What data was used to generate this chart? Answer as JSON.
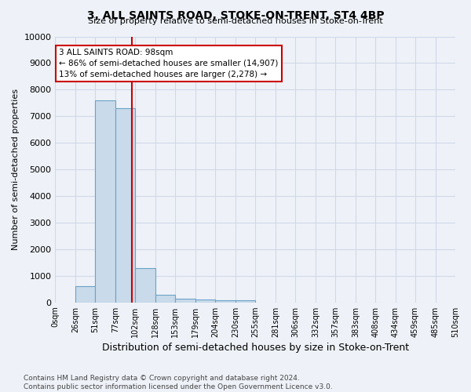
{
  "title": "3, ALL SAINTS ROAD, STOKE-ON-TRENT, ST4 4BP",
  "subtitle": "Size of property relative to semi-detached houses in Stoke-on-Trent",
  "xlabel": "Distribution of semi-detached houses by size in Stoke-on-Trent",
  "ylabel": "Number of semi-detached properties",
  "bin_edges": [
    0,
    26,
    51,
    77,
    102,
    128,
    153,
    179,
    204,
    230,
    255,
    281,
    306,
    332,
    357,
    383,
    408,
    434,
    459,
    485,
    510
  ],
  "bar_heights": [
    0,
    600,
    7600,
    7300,
    1300,
    300,
    150,
    100,
    75,
    75,
    0,
    0,
    0,
    0,
    0,
    0,
    0,
    0,
    0,
    0
  ],
  "bar_color": "#c9daea",
  "bar_edge_color": "#6aa3c8",
  "property_size": 98,
  "red_line_color": "#cc0000",
  "annotation_line1": "3 ALL SAINTS ROAD: 98sqm",
  "annotation_line2": "← 86% of semi-detached houses are smaller (14,907)",
  "annotation_line3": "13% of semi-detached houses are larger (2,278) →",
  "annotation_box_edge": "#cc0000",
  "annotation_box_face": "#ffffff",
  "ylim": [
    0,
    10000
  ],
  "yticks": [
    0,
    1000,
    2000,
    3000,
    4000,
    5000,
    6000,
    7000,
    8000,
    9000,
    10000
  ],
  "xtick_labels": [
    "0sqm",
    "26sqm",
    "51sqm",
    "77sqm",
    "102sqm",
    "128sqm",
    "153sqm",
    "179sqm",
    "204sqm",
    "230sqm",
    "255sqm",
    "281sqm",
    "306sqm",
    "332sqm",
    "357sqm",
    "383sqm",
    "408sqm",
    "434sqm",
    "459sqm",
    "485sqm",
    "510sqm"
  ],
  "xtick_positions": [
    0,
    26,
    51,
    77,
    102,
    128,
    153,
    179,
    204,
    230,
    255,
    281,
    306,
    332,
    357,
    383,
    408,
    434,
    459,
    485,
    510
  ],
  "footer_text": "Contains HM Land Registry data © Crown copyright and database right 2024.\nContains public sector information licensed under the Open Government Licence v3.0.",
  "grid_color": "#d0d8e8",
  "background_color": "#eef2f8"
}
